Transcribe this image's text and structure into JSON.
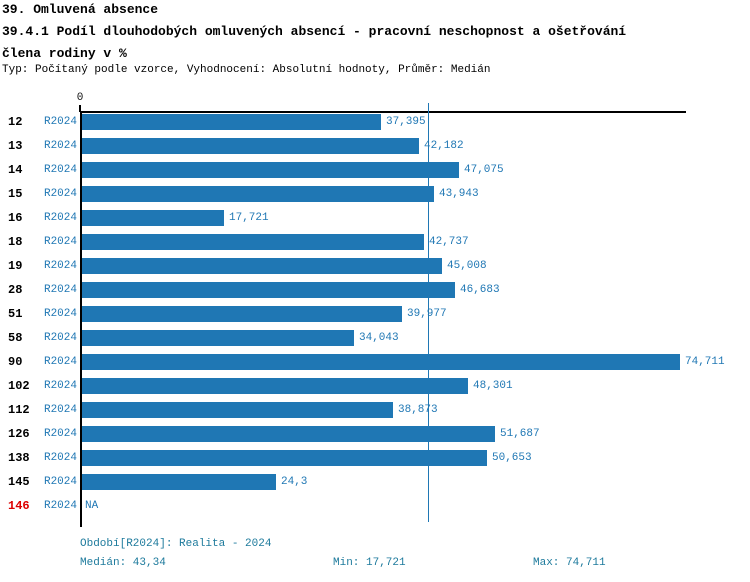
{
  "header": {
    "title": "39. Omluvená absence",
    "subtitle_line1": "39.4.1 Podíl dlouhodobých omluvených absencí - pracovní neschopnost a ošetřování",
    "subtitle_line2": "člena rodiny v %",
    "meta": "Typ: Počítaný podle vzorce, Vyhodnocení: Absolutní hodnoty, Průměr: Medián"
  },
  "chart_data": {
    "type": "bar",
    "orientation": "horizontal",
    "title": "39.4.1 Podíl dlouhodobých omluvených absencí - pracovní neschopnost a ošetřování člena rodiny v %",
    "series_label": "R2024",
    "categories": [
      "12",
      "13",
      "14",
      "15",
      "16",
      "18",
      "19",
      "28",
      "51",
      "58",
      "90",
      "102",
      "112",
      "126",
      "138",
      "145",
      "146"
    ],
    "values": [
      37.395,
      42.182,
      47.075,
      43.943,
      17.721,
      42.737,
      45.008,
      46.683,
      39.977,
      34.043,
      74.711,
      48.301,
      38.873,
      51.687,
      50.653,
      24.3,
      null
    ],
    "value_labels": [
      "37,395",
      "42,182",
      "47,075",
      "43,943",
      "17,721",
      "42,737",
      "45,008",
      "46,683",
      "39,977",
      "34,043",
      "74,711",
      "48,301",
      "38,873",
      "51,687",
      "50,653",
      "24,3",
      "NA"
    ],
    "na_label": "NA",
    "highlight_category": "146",
    "axis": {
      "zero_label": "0",
      "xlim": [
        0,
        75.75
      ],
      "median_value": 43.34
    },
    "legend_position": "none",
    "grid": false,
    "colors": {
      "bar": "#1f77b4",
      "median_line": "#1f77b4",
      "value_label": "#1f77b4",
      "series_label": "#1f77b4",
      "category_label": "#000000",
      "category_label_na": "#dd0000",
      "footer_text": "#1d7a9c"
    }
  },
  "footer": {
    "period": "Období[R2024]: Realita - 2024",
    "median": "Medián: 43,34",
    "min": "Min: 17,721",
    "max": "Max: 74,711"
  }
}
